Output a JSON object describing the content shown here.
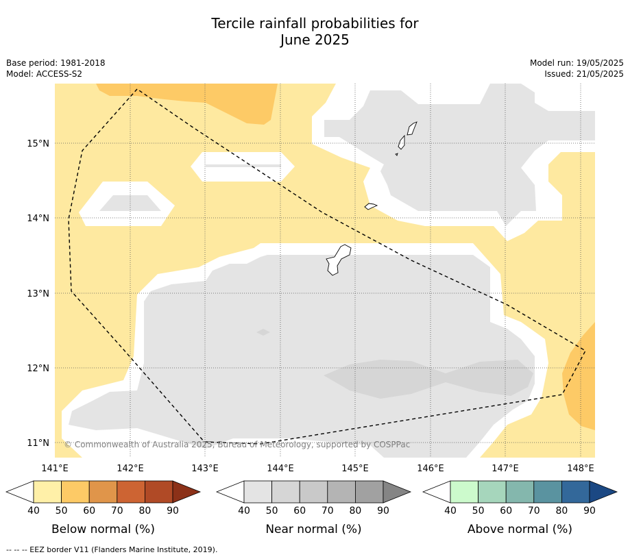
{
  "title_line1": "Tercile rainfall probabilities for",
  "title_line2": "June 2025",
  "meta": {
    "base_period": "Base period: 1981-2018",
    "model": "Model: ACCESS-S2",
    "model_run": "Model run: 19/05/2025",
    "issued": "Issued: 21/05/2025"
  },
  "map": {
    "lon_ticks": [
      "141°E",
      "142°E",
      "143°E",
      "144°E",
      "145°E",
      "146°E",
      "147°E",
      "148°E"
    ],
    "lat_ticks": [
      "15°N",
      "14°N",
      "13°N",
      "12°N",
      "11°N"
    ],
    "copyright": "© Commonwealth of Australia 2025, Bureau of Meteorology, supported by COSPPac",
    "colors": {
      "below_40": "#fee9a0",
      "below_50": "#fdca66",
      "near_40": "#e4e4e4",
      "near_50": "#d6d6d6",
      "coast": "#000000",
      "eez": "#000000"
    }
  },
  "colorbars": [
    {
      "name": "Below normal (%)",
      "labels": [
        "40",
        "50",
        "60",
        "70",
        "80",
        "90"
      ],
      "colors": [
        "#fff0a8",
        "#fdca66",
        "#e0954a",
        "#cd6433",
        "#b04a26",
        "#8c3118"
      ]
    },
    {
      "name": "Near normal (%)",
      "labels": [
        "40",
        "50",
        "60",
        "70",
        "80",
        "90"
      ],
      "colors": [
        "#e4e4e4",
        "#d6d6d6",
        "#c9c9c9",
        "#b4b4b4",
        "#a1a1a1",
        "#858585"
      ]
    },
    {
      "name": "Above normal (%)",
      "labels": [
        "40",
        "50",
        "60",
        "70",
        "80",
        "90"
      ],
      "colors": [
        "#ccfacc",
        "#a6d6bc",
        "#84b7ad",
        "#5a93a0",
        "#33689a",
        "#1b4883"
      ]
    }
  ],
  "footer": "--  --  -- EEZ border V11 (Flanders Marine Institute, 2019)."
}
